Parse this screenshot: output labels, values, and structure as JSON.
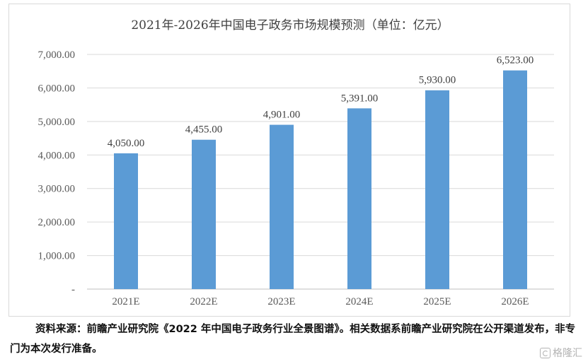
{
  "chart_data": {
    "type": "bar",
    "title": "2021年-2026年中国电子政务市场规模预测（单位：亿元）",
    "categories": [
      "2021E",
      "2022E",
      "2023E",
      "2024E",
      "2025E",
      "2026E"
    ],
    "values": [
      4050.0,
      4455.0,
      4901.0,
      5391.0,
      5930.0,
      6523.0
    ],
    "data_labels": [
      "4,050.00",
      "4,455.00",
      "4,901.00",
      "5,391.00",
      "5,930.00",
      "6,523.00"
    ],
    "ylim": [
      0,
      7000
    ],
    "yticks": [
      0,
      1000,
      2000,
      3000,
      4000,
      5000,
      6000,
      7000
    ],
    "ytick_labels": [
      "-",
      "1,000.00",
      "2,000.00",
      "3,000.00",
      "4,000.00",
      "5,000.00",
      "6,000.00",
      "7,000.00"
    ],
    "grid": true,
    "legend": "none",
    "bar_color": "#5b9bd5"
  },
  "note": {
    "text": "资料来源：前瞻产业研究院《2022 年中国电子政务行业全景图谱》。相关数据系前瞻产业研究院在公开渠道发布，非专门为本次发行准备。"
  },
  "watermark": {
    "text": "格隆汇",
    "icon": "gelonghui-logo-icon"
  }
}
